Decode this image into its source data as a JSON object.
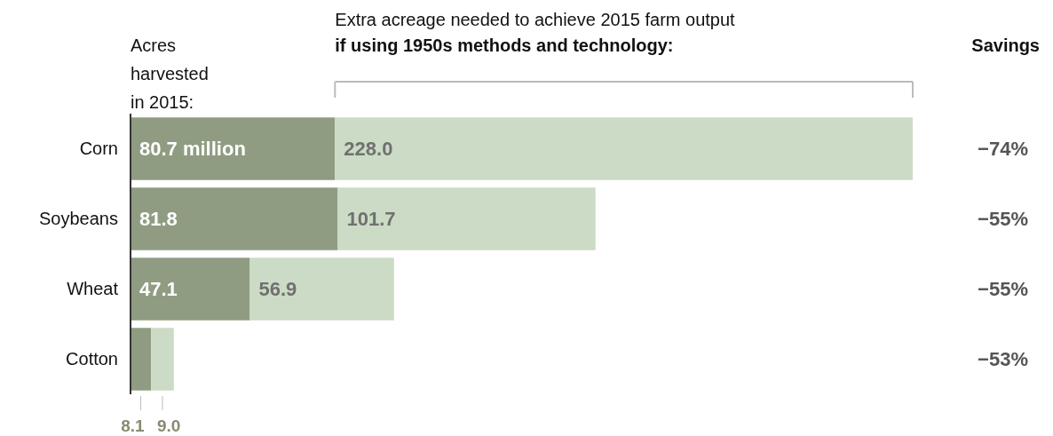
{
  "chart_data": {
    "type": "bar",
    "orientation": "horizontal",
    "stacked": true,
    "categories": [
      "Corn",
      "Soybeans",
      "Wheat",
      "Cotton"
    ],
    "series": [
      {
        "color": "#8f9c82",
        "values": [
          80.7,
          81.8,
          47.1,
          8.1
        ],
        "value_labels": [
          "80.7 million",
          "81.8",
          "47.1",
          "8.1"
        ]
      },
      {
        "color": "#ccdbc5",
        "values": [
          228.0,
          101.7,
          56.9,
          9.0
        ],
        "value_labels": [
          "228.0",
          "101.7",
          "56.9",
          "9.0"
        ]
      }
    ],
    "annotations": [
      "Acres\nharvested\nin 2015:",
      "Extra acreage needed to achieve 2015 farm output",
      "if using 1950s methods and technology:",
      "Savings",
      "−74%",
      "−55%",
      "−55%",
      "−53%"
    ]
  }
}
